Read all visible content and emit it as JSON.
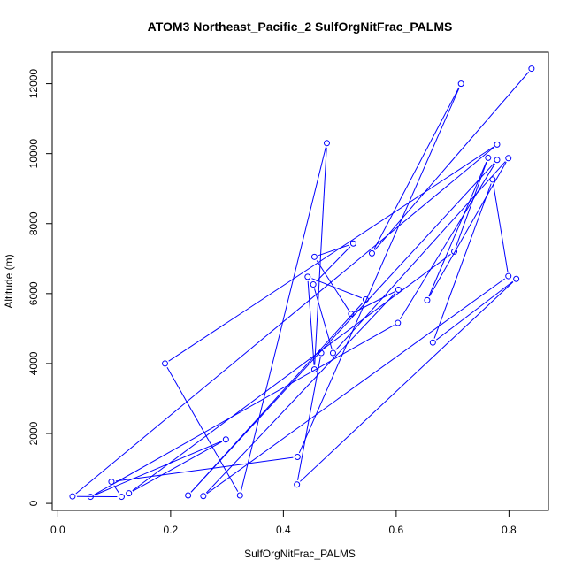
{
  "chart_data": {
    "type": "line",
    "title": "ATOM3 Northeast_Pacific_2 SulfOrgNitFrac_PALMS",
    "xlabel": "SulfOrgNitFrac_PALMS",
    "ylabel": "Altitude (m)",
    "xlim": [
      -0.01,
      0.87
    ],
    "ylim": [
      -200,
      12900
    ],
    "x_ticks": [
      0.0,
      0.2,
      0.4,
      0.6,
      0.8
    ],
    "x_tick_labels": [
      "0.0",
      "0.2",
      "0.4",
      "0.6",
      "0.8"
    ],
    "y_ticks": [
      0,
      2000,
      4000,
      6000,
      8000,
      10000,
      12000
    ],
    "y_tick_labels": [
      "0",
      "2000",
      "4000",
      "6000",
      "8000",
      "10000",
      "12000"
    ],
    "grid": false,
    "color": "#0000ff",
    "series": [
      {
        "marker": "open-circle",
        "points": [
          [
            0.84,
            12430
          ],
          [
            0.557,
            7150
          ],
          [
            0.715,
            12000
          ],
          [
            0.425,
            1330
          ],
          [
            0.095,
            620
          ],
          [
            0.113,
            190
          ],
          [
            0.026,
            200
          ],
          [
            0.779,
            10260
          ],
          [
            0.19,
            4000
          ],
          [
            0.323,
            230
          ],
          [
            0.477,
            10300
          ],
          [
            0.455,
            3830
          ],
          [
            0.443,
            6480
          ],
          [
            0.546,
            5830
          ],
          [
            0.231,
            230
          ],
          [
            0.779,
            9820
          ],
          [
            0.603,
            5160
          ],
          [
            0.058,
            190
          ],
          [
            0.298,
            1830
          ],
          [
            0.126,
            290
          ],
          [
            0.703,
            7200
          ],
          [
            0.763,
            9880
          ],
          [
            0.655,
            5810
          ],
          [
            0.799,
            9870
          ],
          [
            0.488,
            4300
          ],
          [
            0.453,
            6260
          ],
          [
            0.524,
            7430
          ],
          [
            0.455,
            7050
          ],
          [
            0.52,
            5420
          ],
          [
            0.604,
            6110
          ],
          [
            0.258,
            210
          ],
          [
            0.799,
            6500
          ],
          [
            0.771,
            9260
          ],
          [
            0.665,
            4600
          ],
          [
            0.813,
            6420
          ],
          [
            0.424,
            540
          ],
          [
            0.467,
            4300
          ]
        ]
      }
    ]
  }
}
